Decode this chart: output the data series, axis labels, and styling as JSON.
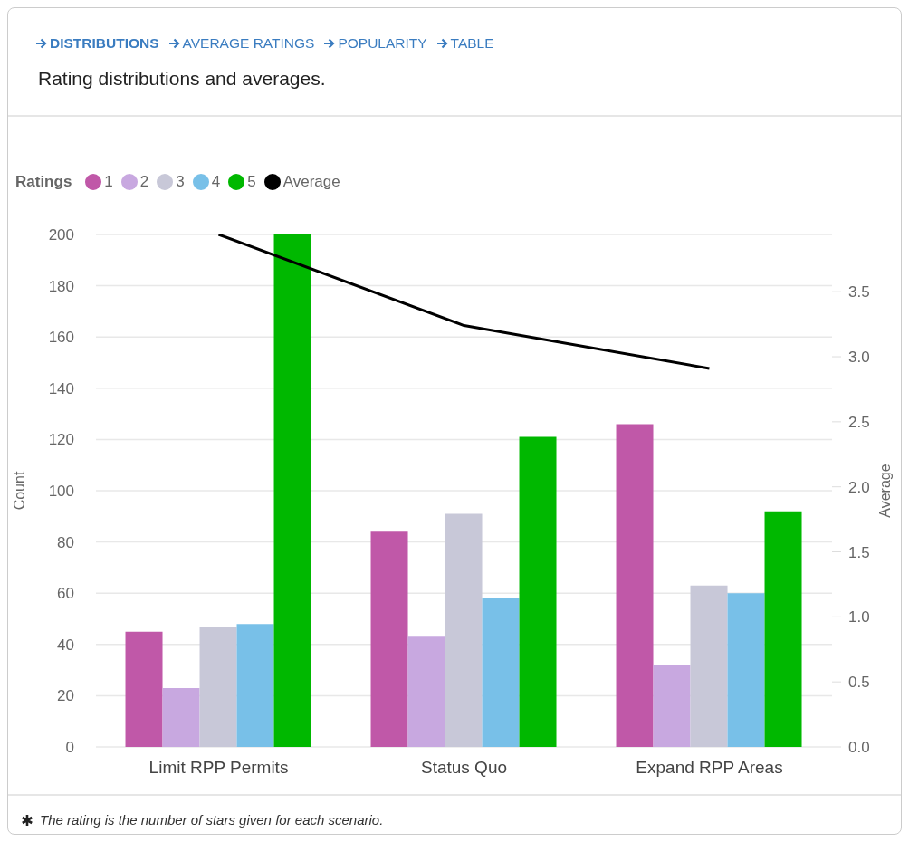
{
  "chart_data": {
    "type": "bar",
    "title": "Rating distributions and averages.",
    "annotations": [
      "DISTRIBUTIONS",
      "AVERAGE RATINGS",
      "POPULARITY",
      "TABLE",
      "The rating is the number of stars given for each scenario."
    ],
    "categories": [
      "Limit RPP Permits",
      "Status Quo",
      "Expand RPP Areas"
    ],
    "series": [
      {
        "name": "1",
        "color": "#c058a8",
        "values": [
          45,
          84,
          126
        ]
      },
      {
        "name": "2",
        "color": "#c8a8e0",
        "values": [
          23,
          43,
          32
        ]
      },
      {
        "name": "3",
        "color": "#c8c8d8",
        "values": [
          47,
          91,
          63
        ]
      },
      {
        "name": "4",
        "color": "#78c0e8",
        "values": [
          48,
          58,
          60
        ]
      },
      {
        "name": "5",
        "color": "#00b800",
        "values": [
          200,
          121,
          92
        ]
      },
      {
        "name": "Average",
        "type": "line",
        "axis": "y2",
        "color": "#000000",
        "values": [
          3.94,
          3.24,
          2.91
        ]
      }
    ],
    "legend_title": "Ratings",
    "legend": "top left",
    "ylabel": "Count",
    "y2label": "Average",
    "ylim": [
      0,
      200
    ],
    "yticks": [
      0,
      20,
      40,
      60,
      80,
      100,
      120,
      140,
      160,
      180,
      200
    ],
    "y2lim": [
      0,
      3.94
    ],
    "y2ticks": [
      {
        "value": 0,
        "label": "0.0"
      },
      {
        "value": 0.5,
        "label": "0.5"
      },
      {
        "value": 1,
        "label": "1.0"
      },
      {
        "value": 1.5,
        "label": "1.5"
      },
      {
        "value": 2,
        "label": "2.0"
      },
      {
        "value": 2.5,
        "label": "2.5"
      },
      {
        "value": 3,
        "label": "3.0"
      },
      {
        "value": 3.5,
        "label": "3.5"
      }
    ],
    "grid": "y",
    "marker": "none",
    "line_style": "solid"
  }
}
